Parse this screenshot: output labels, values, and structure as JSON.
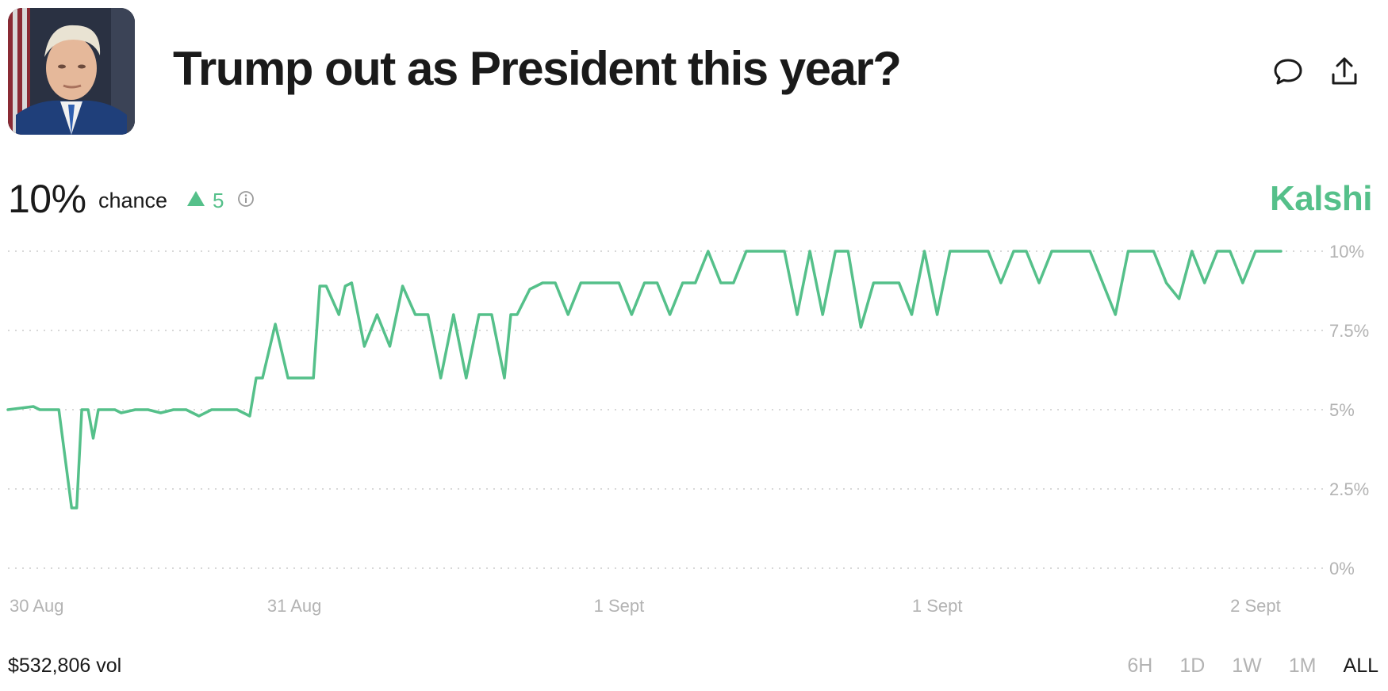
{
  "market": {
    "title": "Trump out as President this year?",
    "chance": "10%",
    "chance_label": "chance",
    "change": "5",
    "brand": "Kalshi",
    "volume": "$532,806 vol"
  },
  "icons": {
    "comment": "comment-icon",
    "share": "share-icon",
    "info": "info-icon",
    "change_direction": "triangle-up-icon"
  },
  "colors": {
    "line": "#55c08a",
    "brand": "#55c08a",
    "grid": "#cccccc",
    "axis_text": "#b3b3b3"
  },
  "time_ranges": [
    {
      "label": "6H",
      "active": false
    },
    {
      "label": "1D",
      "active": false
    },
    {
      "label": "1W",
      "active": false
    },
    {
      "label": "1M",
      "active": false
    },
    {
      "label": "ALL",
      "active": true
    }
  ],
  "chart_data": {
    "type": "line",
    "y_axis_position": "right",
    "grid": "horizontal dotted",
    "ylim": [
      0,
      10
    ],
    "yticks": [
      {
        "value": 10,
        "label": "10%"
      },
      {
        "value": 7.5,
        "label": "7.5%"
      },
      {
        "value": 5,
        "label": "5%"
      },
      {
        "value": 2.5,
        "label": "2.5%"
      },
      {
        "value": 0,
        "label": "0%"
      }
    ],
    "xlim": [
      0,
      100
    ],
    "xticks": [
      {
        "value": 0,
        "label": "30 Aug"
      },
      {
        "value": 22.5,
        "label": "31 Aug"
      },
      {
        "value": 48,
        "label": "1 Sept"
      },
      {
        "value": 73,
        "label": "1 Sept"
      },
      {
        "value": 98,
        "label": "2 Sept"
      }
    ],
    "series": [
      {
        "x": [
          0,
          2,
          2.5,
          4,
          5,
          5.4,
          5.8,
          6.3,
          6.7,
          7.1,
          8,
          8.4,
          8.9,
          10,
          11,
          12,
          13,
          14,
          15,
          16,
          17,
          18,
          19,
          19.5,
          20,
          21,
          22,
          23,
          23.5,
          24,
          24.5,
          25,
          26,
          26.5,
          27,
          28,
          29,
          30,
          31,
          32,
          33,
          34,
          35,
          36,
          37,
          38,
          39,
          39.5,
          40,
          41,
          42,
          43,
          44,
          45,
          46,
          47,
          48,
          49,
          50,
          51,
          52,
          53,
          54,
          55,
          56,
          57,
          58,
          59,
          60,
          61,
          62,
          63,
          64,
          65,
          66,
          67,
          68,
          69,
          70,
          71,
          72,
          73,
          74,
          75,
          76,
          77,
          78,
          79,
          80,
          81,
          82,
          83,
          84,
          85,
          86,
          87,
          88,
          89,
          90,
          91,
          92,
          93,
          94,
          95,
          96,
          97,
          98,
          99,
          100
        ],
        "values": [
          5.0,
          5.1,
          5.0,
          5.0,
          1.9,
          1.9,
          5.0,
          5.0,
          4.1,
          5.0,
          5.0,
          5.0,
          4.9,
          5.0,
          5.0,
          4.9,
          5.0,
          5.0,
          4.8,
          5.0,
          5.0,
          5.0,
          4.8,
          6.0,
          6.0,
          7.7,
          6.0,
          6.0,
          6.0,
          6.0,
          8.9,
          8.9,
          8.0,
          8.9,
          9.0,
          7.0,
          8.0,
          7.0,
          8.9,
          8.0,
          8.0,
          6.0,
          8.0,
          6.0,
          8.0,
          8.0,
          6.0,
          8.0,
          8.0,
          8.8,
          9.0,
          9.0,
          8.0,
          9.0,
          9.0,
          9.0,
          9.0,
          8.0,
          9.0,
          9.0,
          8.0,
          9.0,
          9.0,
          10.0,
          9.0,
          9.0,
          10.0,
          10.0,
          10.0,
          10.0,
          8.0,
          10.0,
          8.0,
          10.0,
          10.0,
          7.6,
          9.0,
          9.0,
          9.0,
          8.0,
          10.0,
          8.0,
          10.0,
          10.0,
          10.0,
          10.0,
          9.0,
          10.0,
          10.0,
          9.0,
          10.0,
          10.0,
          10.0,
          10.0,
          9.0,
          8.0,
          10.0,
          10.0,
          10.0,
          9.0,
          8.5,
          10.0,
          9.0,
          10.0,
          10.0,
          9.0,
          10.0,
          10.0,
          10.0
        ]
      }
    ]
  }
}
